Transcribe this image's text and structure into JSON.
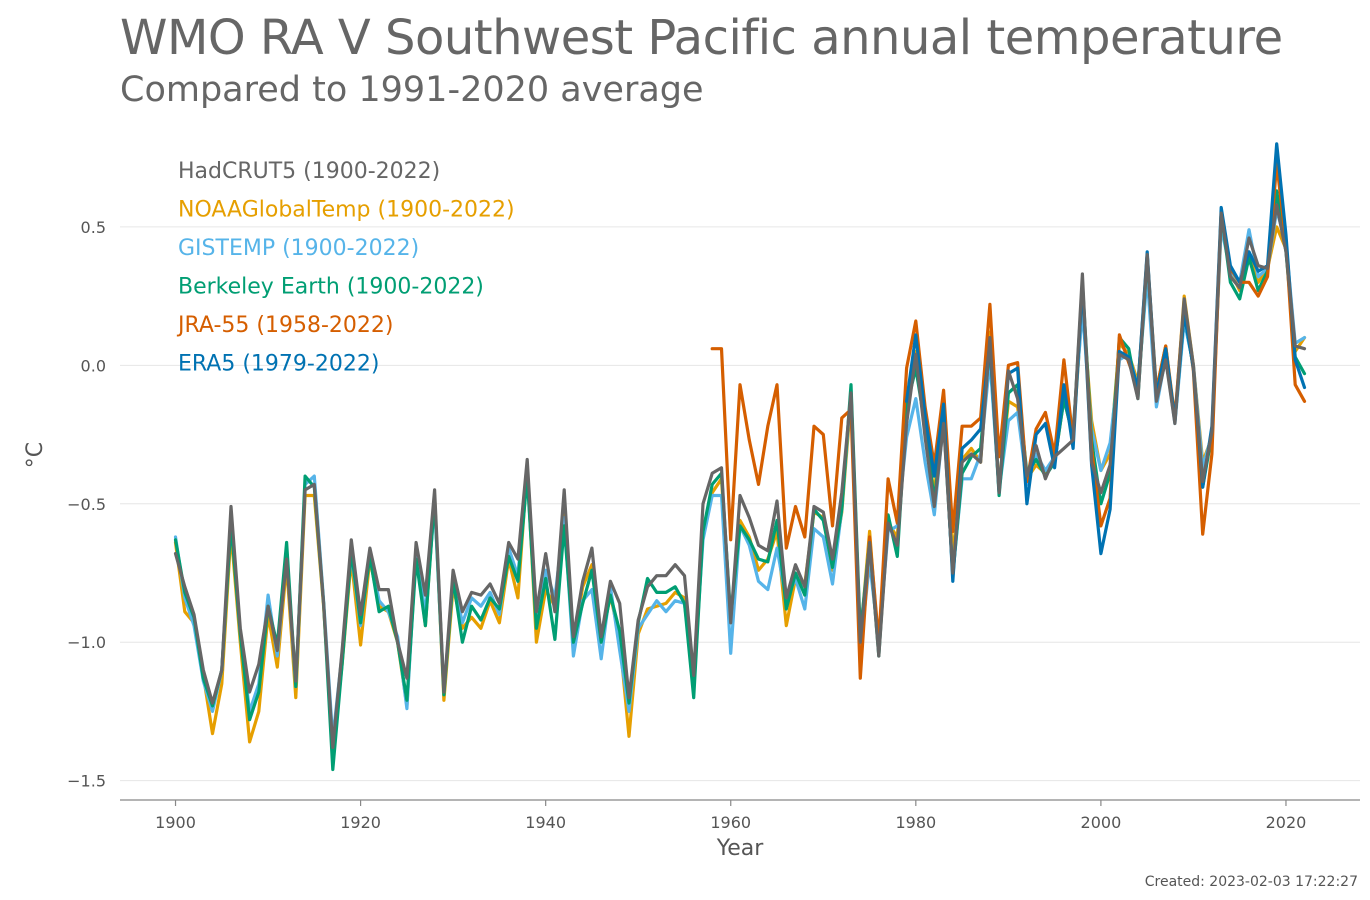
{
  "title": "WMO RA V Southwest Pacific annual temperature",
  "subtitle": "Compared to 1991-2020 average",
  "created": "Created: 2023-02-03 17:22:27",
  "chart_data": {
    "type": "line",
    "xlabel": "Year",
    "ylabel": "°C",
    "xlim": [
      1894,
      2028
    ],
    "ylim": [
      -1.57,
      0.85
    ],
    "xticks": [
      1900,
      1920,
      1940,
      1960,
      1980,
      2000,
      2020
    ],
    "yticks": [
      -1.5,
      -1.0,
      -0.5,
      0.0,
      0.5
    ],
    "ytick_labels": [
      "−1.5",
      "−1.0",
      "−0.5",
      "0.0",
      "0.5"
    ],
    "grid": "horizontal",
    "legend_position": "top-left",
    "series": [
      {
        "name": "NOAAGlobalTemp (1900-2022)",
        "color": "#E69F00",
        "start": 1900,
        "values": [
          -0.64,
          -0.89,
          -0.93,
          -1.12,
          -1.33,
          -1.15,
          -0.6,
          -1.0,
          -1.36,
          -1.25,
          -0.9,
          -1.09,
          -0.72,
          -1.2,
          -0.47,
          -0.47,
          -0.87,
          -1.4,
          -1.08,
          -0.7,
          -1.01,
          -0.7,
          -0.87,
          -0.89,
          -1.0,
          -1.23,
          -0.66,
          -0.94,
          -0.47,
          -1.21,
          -0.8,
          -0.95,
          -0.91,
          -0.95,
          -0.85,
          -0.93,
          -0.7,
          -0.84,
          -0.37,
          -1.0,
          -0.81,
          -0.87,
          -0.52,
          -1.0,
          -0.8,
          -0.72,
          -1.0,
          -0.83,
          -0.99,
          -1.34,
          -0.97,
          -0.88,
          -0.87,
          -0.86,
          -0.82,
          -0.84,
          -1.14,
          -0.61,
          -0.46,
          -0.41,
          -0.93,
          -0.56,
          -0.62,
          -0.74,
          -0.7,
          -0.6,
          -0.94,
          -0.77,
          -0.79,
          -0.53,
          -0.55,
          -0.74,
          -0.53,
          -0.12,
          -0.99,
          -0.6,
          -1.03,
          -0.57,
          -0.62,
          -0.13,
          0.05,
          -0.25,
          -0.46,
          -0.16,
          -0.69,
          -0.34,
          -0.3,
          -0.35,
          0.12,
          -0.45,
          -0.13,
          -0.15,
          -0.41,
          -0.36,
          -0.39,
          -0.35,
          -0.12,
          -0.26,
          0.22,
          -0.2,
          -0.38,
          -0.32,
          0.08,
          0.04,
          -0.06,
          0.33,
          -0.09,
          0.07,
          -0.2,
          0.25,
          0.0,
          -0.35,
          -0.26,
          0.52,
          0.34,
          0.27,
          0.4,
          0.3,
          0.35,
          0.5,
          0.42,
          0.05,
          0.1
        ]
      },
      {
        "name": "GISTEMP (1900-2022)",
        "color": "#56B4E9",
        "start": 1900,
        "values": [
          -0.62,
          -0.84,
          -0.94,
          -1.14,
          -1.25,
          -1.1,
          -0.55,
          -0.97,
          -1.25,
          -1.15,
          -0.83,
          -1.05,
          -0.68,
          -1.16,
          -0.43,
          -0.4,
          -0.85,
          -1.35,
          -1.04,
          -0.68,
          -0.94,
          -0.68,
          -0.85,
          -0.89,
          -0.98,
          -1.24,
          -0.67,
          -0.9,
          -0.5,
          -1.18,
          -0.77,
          -0.93,
          -0.84,
          -0.87,
          -0.82,
          -0.9,
          -0.66,
          -0.76,
          -0.39,
          -0.93,
          -0.74,
          -0.84,
          -0.55,
          -1.05,
          -0.85,
          -0.81,
          -1.06,
          -0.8,
          -1.03,
          -1.25,
          -0.95,
          -0.9,
          -0.85,
          -0.89,
          -0.85,
          -0.86,
          -1.14,
          -0.63,
          -0.47,
          -0.47,
          -1.04,
          -0.58,
          -0.65,
          -0.78,
          -0.81,
          -0.66,
          -0.85,
          -0.77,
          -0.88,
          -0.59,
          -0.62,
          -0.79,
          -0.52,
          -0.09,
          -1.03,
          -0.71,
          -1.0,
          -0.6,
          -0.58,
          -0.26,
          -0.12,
          -0.35,
          -0.54,
          -0.2,
          -0.75,
          -0.41,
          -0.41,
          -0.32,
          0.02,
          -0.45,
          -0.2,
          -0.17,
          -0.43,
          -0.32,
          -0.38,
          -0.33,
          -0.13,
          -0.23,
          0.2,
          -0.23,
          -0.38,
          -0.28,
          0.02,
          0.04,
          -0.08,
          0.32,
          -0.15,
          0.03,
          -0.21,
          0.16,
          0.0,
          -0.37,
          -0.25,
          0.5,
          0.34,
          0.3,
          0.49,
          0.32,
          0.35,
          0.56,
          0.44,
          0.08,
          0.1
        ]
      },
      {
        "name": "Berkeley Earth (1900-2022)",
        "color": "#009E73",
        "start": 1900,
        "values": [
          -0.63,
          -0.82,
          -0.91,
          -1.13,
          -1.23,
          -1.1,
          -0.57,
          -0.97,
          -1.28,
          -1.18,
          -0.87,
          -1.01,
          -0.64,
          -1.16,
          -0.4,
          -0.44,
          -0.86,
          -1.46,
          -1.08,
          -0.67,
          -0.93,
          -0.69,
          -0.89,
          -0.87,
          -1.0,
          -1.21,
          -0.7,
          -0.94,
          -0.48,
          -1.19,
          -0.77,
          -1.0,
          -0.87,
          -0.92,
          -0.84,
          -0.88,
          -0.69,
          -0.78,
          -0.4,
          -0.95,
          -0.77,
          -0.99,
          -0.58,
          -1.0,
          -0.86,
          -0.74,
          -1.0,
          -0.83,
          -0.96,
          -1.22,
          -0.93,
          -0.77,
          -0.82,
          -0.82,
          -0.8,
          -0.86,
          -1.2,
          -0.6,
          -0.43,
          -0.39,
          -0.91,
          -0.58,
          -0.63,
          -0.7,
          -0.71,
          -0.56,
          -0.88,
          -0.75,
          -0.83,
          -0.52,
          -0.56,
          -0.73,
          -0.52,
          -0.07,
          -0.97,
          -0.64,
          -1.05,
          -0.54,
          -0.69,
          -0.15,
          -0.01,
          -0.22,
          -0.49,
          -0.19,
          -0.76,
          -0.39,
          -0.33,
          -0.3,
          0.08,
          -0.47,
          -0.1,
          -0.07,
          -0.39,
          -0.34,
          -0.4,
          -0.35,
          -0.12,
          -0.26,
          0.3,
          -0.27,
          -0.5,
          -0.39,
          0.1,
          0.06,
          -0.12,
          0.39,
          -0.1,
          0.03,
          -0.2,
          0.19,
          -0.01,
          -0.44,
          -0.25,
          0.55,
          0.3,
          0.24,
          0.39,
          0.27,
          0.34,
          0.63,
          0.41,
          0.03,
          -0.03
        ]
      },
      {
        "name": "JRA-55 (1958-2022)",
        "color": "#D55E00",
        "start": 1958,
        "values": [
          0.06,
          0.06,
          -0.63,
          -0.07,
          -0.27,
          -0.43,
          -0.22,
          -0.07,
          -0.66,
          -0.51,
          -0.62,
          -0.22,
          -0.25,
          -0.58,
          -0.19,
          -0.16,
          -1.13,
          -0.62,
          -1.0,
          -0.41,
          -0.57,
          -0.01,
          0.16,
          -0.15,
          -0.36,
          -0.09,
          -0.6,
          -0.22,
          -0.22,
          -0.19,
          0.22,
          -0.33,
          0.0,
          0.01,
          -0.42,
          -0.23,
          -0.17,
          -0.32,
          0.02,
          -0.27,
          0.29,
          -0.3,
          -0.58,
          -0.48,
          0.11,
          0.01,
          -0.08,
          0.4,
          -0.09,
          0.07,
          -0.19,
          0.23,
          -0.02,
          -0.61,
          -0.32,
          0.55,
          0.35,
          0.3,
          0.3,
          0.25,
          0.32,
          0.73,
          0.44,
          -0.07,
          -0.13
        ]
      },
      {
        "name": "ERA5 (1979-2022)",
        "color": "#0072B2",
        "start": 1979,
        "values": [
          -0.13,
          0.11,
          -0.18,
          -0.4,
          -0.14,
          -0.78,
          -0.3,
          -0.27,
          -0.23,
          0.08,
          -0.46,
          -0.03,
          -0.01,
          -0.5,
          -0.25,
          -0.21,
          -0.37,
          -0.07,
          -0.3,
          0.3,
          -0.36,
          -0.68,
          -0.52,
          0.05,
          0.03,
          -0.08,
          0.41,
          -0.11,
          0.06,
          -0.2,
          0.19,
          -0.01,
          -0.44,
          -0.22,
          0.57,
          0.36,
          0.3,
          0.41,
          0.34,
          0.36,
          0.8,
          0.47,
          0.02,
          -0.08
        ]
      },
      {
        "name": "HadCRUT5 (1900-2022)",
        "color": "#666666",
        "start": 1900,
        "values": [
          -0.68,
          -0.8,
          -0.9,
          -1.1,
          -1.22,
          -1.1,
          -0.51,
          -0.95,
          -1.18,
          -1.08,
          -0.87,
          -1.03,
          -0.7,
          -1.14,
          -0.45,
          -0.43,
          -0.86,
          -1.38,
          -1.03,
          -0.63,
          -0.9,
          -0.66,
          -0.81,
          -0.81,
          -1.0,
          -1.13,
          -0.64,
          -0.83,
          -0.45,
          -1.18,
          -0.74,
          -0.89,
          -0.82,
          -0.83,
          -0.79,
          -0.86,
          -0.64,
          -0.7,
          -0.34,
          -0.89,
          -0.68,
          -0.89,
          -0.45,
          -0.98,
          -0.78,
          -0.66,
          -0.98,
          -0.78,
          -0.86,
          -1.2,
          -0.92,
          -0.8,
          -0.76,
          -0.76,
          -0.72,
          -0.76,
          -1.12,
          -0.5,
          -0.39,
          -0.37,
          -0.93,
          -0.47,
          -0.55,
          -0.65,
          -0.67,
          -0.49,
          -0.84,
          -0.72,
          -0.8,
          -0.51,
          -0.53,
          -0.7,
          -0.46,
          -0.1,
          -1.0,
          -0.64,
          -1.05,
          -0.57,
          -0.65,
          -0.21,
          0.04,
          -0.26,
          -0.51,
          -0.21,
          -0.75,
          -0.35,
          -0.32,
          -0.35,
          0.1,
          -0.46,
          -0.02,
          -0.12,
          -0.4,
          -0.29,
          -0.41,
          -0.33,
          -0.3,
          -0.27,
          0.33,
          -0.35,
          -0.46,
          -0.36,
          0.04,
          0.02,
          -0.12,
          0.4,
          -0.13,
          0.02,
          -0.21,
          0.24,
          0.0,
          -0.42,
          -0.24,
          0.55,
          0.32,
          0.28,
          0.46,
          0.36,
          0.35,
          0.58,
          0.41,
          0.07,
          0.06
        ]
      }
    ]
  }
}
